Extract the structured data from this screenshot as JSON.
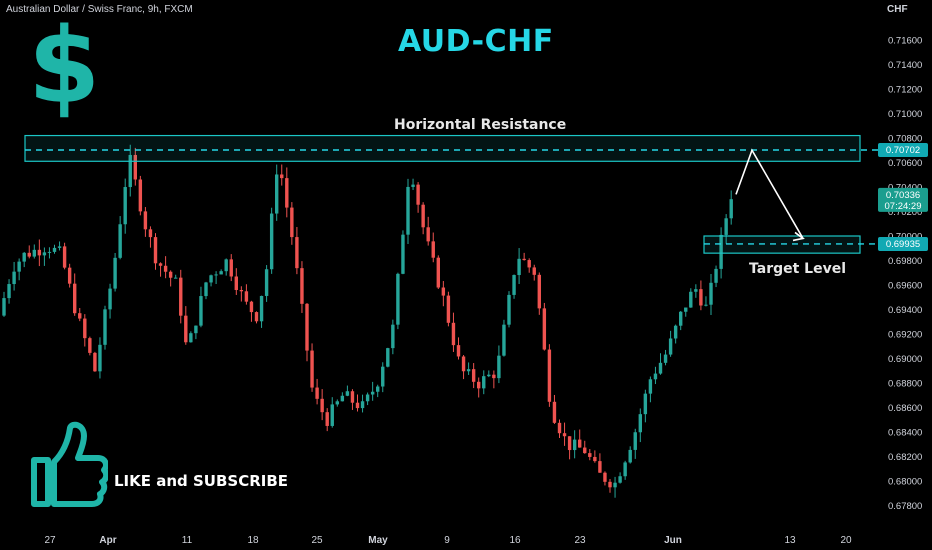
{
  "header": {
    "symbol_line": "Australian Dollar / Swiss Franc, 9h, FXCM",
    "currency": "CHF"
  },
  "title": "AUD-CHF",
  "annotations": {
    "resistance_label": "Horizontal Resistance",
    "target_label": "Target Level",
    "cta": "LIKE and SUBSCRIBE"
  },
  "icons": {
    "dollar_sign": "$",
    "thumb": "thumbs-up-icon"
  },
  "colors": {
    "background": "#000000",
    "up": "#26a69a",
    "down": "#ef5350",
    "accent": "#26d7e6",
    "box": "#1bc7c7",
    "price_badge": "#1b9e8f"
  },
  "chart_data": {
    "type": "candlestick",
    "ylim": [
      0.677,
      0.718
    ],
    "y_ticks": [
      "0.71600",
      "0.71400",
      "0.71200",
      "0.71000",
      "0.70800",
      "0.70600",
      "0.70400",
      "0.70200",
      "0.70000",
      "0.69800",
      "0.69600",
      "0.69400",
      "0.69200",
      "0.69000",
      "0.68800",
      "0.68600",
      "0.68400",
      "0.68200",
      "0.68000",
      "0.67800"
    ],
    "x_labels": [
      "27",
      "Apr",
      "11",
      "18",
      "25",
      "May",
      "9",
      "16",
      "23",
      "Jun",
      "13",
      "20"
    ],
    "resistance_level": 0.70702,
    "resistance_zone": [
      0.7061,
      0.7082
    ],
    "target_level": 0.69935,
    "target_zone": [
      0.6986,
      0.7
    ],
    "last_price": "0.70336",
    "countdown": "07:24:29",
    "resistance_badge": "0.70702",
    "target_badge": "0.69935",
    "projected_path": [
      {
        "t": "Jun 8",
        "price": 0.707
      },
      {
        "t": "Jun 15",
        "price": 0.6998
      }
    ],
    "candles": []
  }
}
